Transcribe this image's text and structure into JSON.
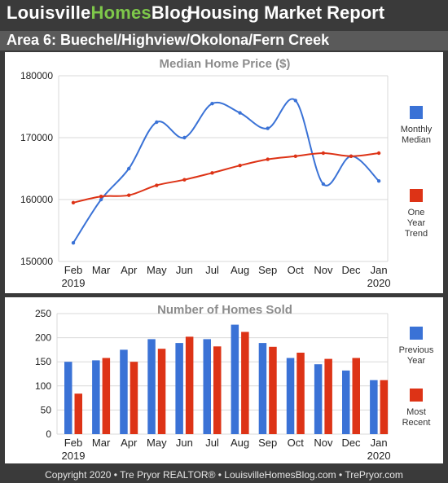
{
  "header": {
    "brand_part1": "Louisville",
    "brand_part2": "Homes",
    "brand_part3": "Blog",
    "report_title": "Housing Market Report"
  },
  "area_title": "Area 6: Buechel/Highview/Okolona/Fern Creek",
  "footer": "Copyright 2020 • Tre Pryor REALTOR® • LouisvilleHomesBlog.com • TrePryor.com",
  "colors": {
    "blue": "#3a72d6",
    "red": "#dd3316",
    "green": "#7ec84a",
    "grid": "#d9d9d9"
  },
  "chart_data": [
    {
      "type": "line",
      "title": "Median Home Price ($)",
      "categories": [
        "Feb",
        "Mar",
        "Apr",
        "May",
        "Jun",
        "Jul",
        "Aug",
        "Sep",
        "Oct",
        "Nov",
        "Dec",
        "Jan"
      ],
      "year_labels": {
        "first": "2019",
        "last": "2020"
      },
      "yticks": [
        "150000",
        "160000",
        "170000",
        "180000"
      ],
      "ylim": [
        150000,
        180000
      ],
      "grid": true,
      "legend_position": "right",
      "series": [
        {
          "name": "Monthly Median",
          "legend_lines": [
            "Monthly",
            "Median"
          ],
          "color": "#3a72d6",
          "values": [
            153000,
            160000,
            165000,
            172500,
            170000,
            175500,
            174000,
            171500,
            176000,
            162500,
            167000,
            163000
          ]
        },
        {
          "name": "One Year Trend",
          "legend_lines": [
            "One",
            "Year",
            "Trend"
          ],
          "color": "#dd3316",
          "values": [
            159500,
            160500,
            160700,
            162300,
            163200,
            164300,
            165500,
            166500,
            167000,
            167500,
            167000,
            167500
          ]
        }
      ]
    },
    {
      "type": "bar",
      "title": "Number of Homes Sold",
      "categories": [
        "Feb",
        "Mar",
        "Apr",
        "May",
        "Jun",
        "Jul",
        "Aug",
        "Sep",
        "Oct",
        "Nov",
        "Dec",
        "Jan"
      ],
      "year_labels": {
        "first": "2019",
        "last": "2020"
      },
      "yticks": [
        "0",
        "50",
        "100",
        "150",
        "200",
        "250"
      ],
      "ylim": [
        0,
        250
      ],
      "grid": true,
      "legend_position": "right",
      "series": [
        {
          "name": "Previous Year",
          "legend_lines": [
            "Previous",
            "Year"
          ],
          "color": "#3a72d6",
          "values": [
            150,
            153,
            175,
            197,
            189,
            197,
            227,
            189,
            158,
            145,
            132,
            112
          ]
        },
        {
          "name": "Most Recent",
          "legend_lines": [
            "Most",
            "Recent"
          ],
          "color": "#dd3316",
          "values": [
            84,
            158,
            150,
            177,
            202,
            182,
            212,
            181,
            169,
            156,
            158,
            112
          ]
        }
      ]
    }
  ]
}
